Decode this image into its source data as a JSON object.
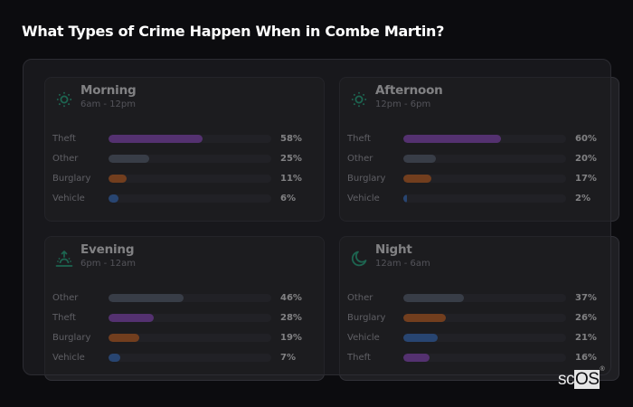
{
  "title": "What Types of Crime Happen When in Combe Martin?",
  "colors": {
    "Theft": "#9b4fd6",
    "Other": "#5e697b",
    "Burglary": "#dd6a1f",
    "Vehicle": "#3b7bd8",
    "icon": "#22c08f"
  },
  "cards": [
    {
      "title": "Morning",
      "subtitle": "6am - 12pm",
      "icon": "sun-icon",
      "rows": [
        {
          "label": "Theft",
          "value": 58,
          "pct": "58%"
        },
        {
          "label": "Other",
          "value": 25,
          "pct": "25%"
        },
        {
          "label": "Burglary",
          "value": 11,
          "pct": "11%"
        },
        {
          "label": "Vehicle",
          "value": 6,
          "pct": "6%"
        }
      ]
    },
    {
      "title": "Afternoon",
      "subtitle": "12pm - 6pm",
      "icon": "sun-icon",
      "rows": [
        {
          "label": "Theft",
          "value": 60,
          "pct": "60%"
        },
        {
          "label": "Other",
          "value": 20,
          "pct": "20%"
        },
        {
          "label": "Burglary",
          "value": 17,
          "pct": "17%"
        },
        {
          "label": "Vehicle",
          "value": 2,
          "pct": "2%"
        }
      ]
    },
    {
      "title": "Evening",
      "subtitle": "6pm - 12am",
      "icon": "sunset-icon",
      "rows": [
        {
          "label": "Other",
          "value": 46,
          "pct": "46%"
        },
        {
          "label": "Theft",
          "value": 28,
          "pct": "28%"
        },
        {
          "label": "Burglary",
          "value": 19,
          "pct": "19%"
        },
        {
          "label": "Vehicle",
          "value": 7,
          "pct": "7%"
        }
      ]
    },
    {
      "title": "Night",
      "subtitle": "12am - 6am",
      "icon": "moon-icon",
      "rows": [
        {
          "label": "Other",
          "value": 37,
          "pct": "37%"
        },
        {
          "label": "Burglary",
          "value": 26,
          "pct": "26%"
        },
        {
          "label": "Vehicle",
          "value": 21,
          "pct": "21%"
        },
        {
          "label": "Theft",
          "value": 16,
          "pct": "16%"
        }
      ]
    }
  ],
  "logo": {
    "sc": "sc",
    "os": "OS",
    "mark": "®"
  },
  "chart_data": [
    {
      "type": "bar",
      "orientation": "horizontal",
      "title": "Morning (6am - 12pm)",
      "categories": [
        "Theft",
        "Other",
        "Burglary",
        "Vehicle"
      ],
      "values": [
        58,
        25,
        11,
        6
      ],
      "xlim": [
        0,
        100
      ],
      "unit": "%"
    },
    {
      "type": "bar",
      "orientation": "horizontal",
      "title": "Afternoon (12pm - 6pm)",
      "categories": [
        "Theft",
        "Other",
        "Burglary",
        "Vehicle"
      ],
      "values": [
        60,
        20,
        17,
        2
      ],
      "xlim": [
        0,
        100
      ],
      "unit": "%"
    },
    {
      "type": "bar",
      "orientation": "horizontal",
      "title": "Evening (6pm - 12am)",
      "categories": [
        "Other",
        "Theft",
        "Burglary",
        "Vehicle"
      ],
      "values": [
        46,
        28,
        19,
        7
      ],
      "xlim": [
        0,
        100
      ],
      "unit": "%"
    },
    {
      "type": "bar",
      "orientation": "horizontal",
      "title": "Night (12am - 6am)",
      "categories": [
        "Other",
        "Burglary",
        "Vehicle",
        "Theft"
      ],
      "values": [
        37,
        26,
        21,
        16
      ],
      "xlim": [
        0,
        100
      ],
      "unit": "%"
    }
  ]
}
